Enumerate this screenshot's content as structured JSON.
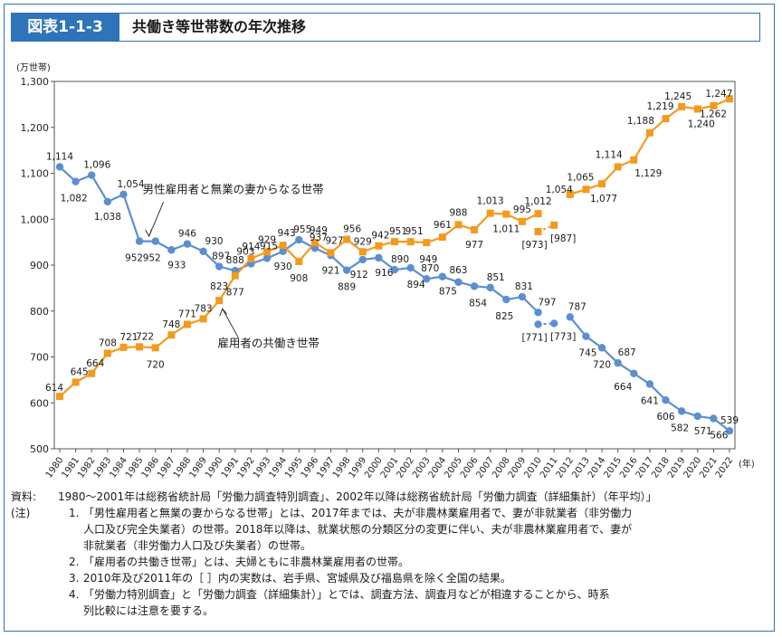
{
  "figure": {
    "tag": "図表1-1-3",
    "title": "共働き等世帯数の年次推移"
  },
  "chart_data": {
    "type": "line",
    "title": "共働き等世帯数の年次推移",
    "ylabel": "(万世帯)",
    "xlabel": "(年)",
    "ylim": [
      500,
      1300
    ],
    "yticks": [
      500,
      600,
      700,
      800,
      900,
      1000,
      1100,
      1200,
      1300
    ],
    "ytick_labels": [
      "500",
      "600",
      "700",
      "800",
      "900",
      "1,000",
      "1,100",
      "1,200",
      "1,300"
    ],
    "x": [
      1980,
      1981,
      1982,
      1983,
      1984,
      1985,
      1986,
      1987,
      1988,
      1989,
      1990,
      1991,
      1992,
      1993,
      1994,
      1995,
      1996,
      1997,
      1998,
      1999,
      2000,
      2001,
      2002,
      2003,
      2004,
      2005,
      2006,
      2007,
      2008,
      2009,
      2010,
      2011,
      2012,
      2013,
      2014,
      2015,
      2016,
      2017,
      2018,
      2019,
      2020,
      2021,
      2022
    ],
    "series": [
      {
        "name": "男性雇用者と無業の妻からなる世帯",
        "color": "#5b8fd1",
        "marker": "circle",
        "values": [
          1114,
          1082,
          1096,
          1038,
          1054,
          952,
          952,
          933,
          946,
          930,
          897,
          888,
          903,
          915,
          930,
          955,
          937,
          921,
          889,
          912,
          916,
          890,
          894,
          870,
          875,
          863,
          854,
          851,
          825,
          831,
          797,
          null,
          787,
          745,
          720,
          687,
          664,
          641,
          606,
          582,
          571,
          566,
          539
        ],
        "labels": [
          "1,114",
          "1,082",
          "1,096",
          "1,038",
          "1,054",
          "952",
          "952",
          "933",
          "946",
          "930",
          "897",
          "888",
          "903",
          "915",
          "930",
          "955",
          "937",
          "921",
          "889",
          "912",
          "916",
          "890",
          "894",
          "870",
          "875",
          "863",
          "854",
          "851",
          "825",
          "831",
          "797",
          null,
          "787",
          "745",
          "720",
          "687",
          "664",
          "641",
          "606",
          "582",
          "571",
          "566",
          "539"
        ],
        "bracket": [
          {
            "year": 2010,
            "value": 771,
            "label": "[771]"
          },
          {
            "year": 2011,
            "value": 773,
            "label": "[773]"
          }
        ]
      },
      {
        "name": "雇用者の共働き世帯",
        "color": "#f39a1e",
        "marker": "square",
        "values": [
          614,
          645,
          664,
          708,
          721,
          722,
          720,
          748,
          771,
          783,
          823,
          877,
          914,
          929,
          943,
          908,
          949,
          927,
          956,
          929,
          942,
          951,
          951,
          949,
          961,
          988,
          977,
          1013,
          1011,
          995,
          1012,
          null,
          1054,
          1065,
          1077,
          1114,
          1129,
          1188,
          1219,
          1245,
          1240,
          1247,
          1262
        ],
        "labels": [
          "614",
          "645",
          "664",
          "708",
          "721",
          "722",
          "720",
          "748",
          "771",
          "783",
          "823",
          "877",
          "914",
          "929",
          "943",
          "908",
          "949",
          "927",
          "956",
          "929",
          "942",
          "951",
          "951",
          "949",
          "961",
          "988",
          "977",
          "1,013",
          "1,011",
          "995",
          "1,012",
          null,
          "1,054",
          "1,065",
          "1,077",
          "1,114",
          "1,129",
          "1,188",
          "1,219",
          "1,245",
          "1,240",
          "1,247",
          "1,262"
        ],
        "bracket": [
          {
            "year": 2010,
            "value": 973,
            "label": "[973]"
          },
          {
            "year": 2011,
            "value": 987,
            "label": "[987]"
          }
        ]
      }
    ],
    "annotations": [
      {
        "text": "男性雇用者と無業の妻からなる世帯"
      },
      {
        "text": "雇用者の共働き世帯"
      }
    ]
  },
  "notes": [
    {
      "lead": "資料:",
      "num": "",
      "text": "1980～2001年は総務省統計局「労働力調査特別調査」、2002年以降は総務省統計局「労働力調査（詳細集計）（年平均）」"
    },
    {
      "lead": "(注)",
      "num": "1.",
      "text": "「男性雇用者と無業の妻からなる世帯」とは、2017年までは、夫が非農林業雇用者で、妻が非就業者（非労働力"
    },
    {
      "lead": "",
      "num": "",
      "text": "人口及び完全失業者）の世帯。2018年以降は、就業状態の分類区分の変更に伴い、夫が非農林業雇用者で、妻が"
    },
    {
      "lead": "",
      "num": "",
      "text": "非就業者（非労働力人口及び失業者）の世帯。"
    },
    {
      "lead": "",
      "num": "2.",
      "text": "「雇用者の共働き世帯」とは、夫婦ともに非農林業雇用者の世帯。"
    },
    {
      "lead": "",
      "num": "3.",
      "text": "2010年及び2011年の［ ］内の実数は、岩手県、宮城県及び福島県を除く全国の結果。"
    },
    {
      "lead": "",
      "num": "4.",
      "text": "「労働力特別調査」と「労働力調査（詳細集計）」とでは、調査方法、調査月などが相違することから、時系"
    },
    {
      "lead": "",
      "num": "",
      "text": "列比較には注意を要する。"
    }
  ]
}
